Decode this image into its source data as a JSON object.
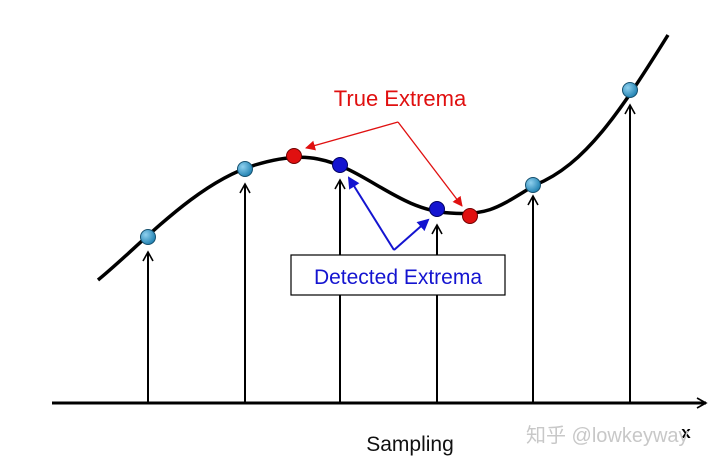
{
  "labels": {
    "true_extrema": "True Extrema",
    "detected_extrema": "Detected Extrema",
    "axis_name": "Sampling",
    "axis_var": "x",
    "watermark": "知乎 @lowkeyway"
  },
  "colors": {
    "curve": "#000000",
    "true_extrema": "#e01010",
    "detected_extrema": "#1414d0",
    "sample_points": "#2a8fc0",
    "true_label": "#e01010",
    "detected_label": "#1414d0",
    "watermark": "#c8c8c8"
  }
}
